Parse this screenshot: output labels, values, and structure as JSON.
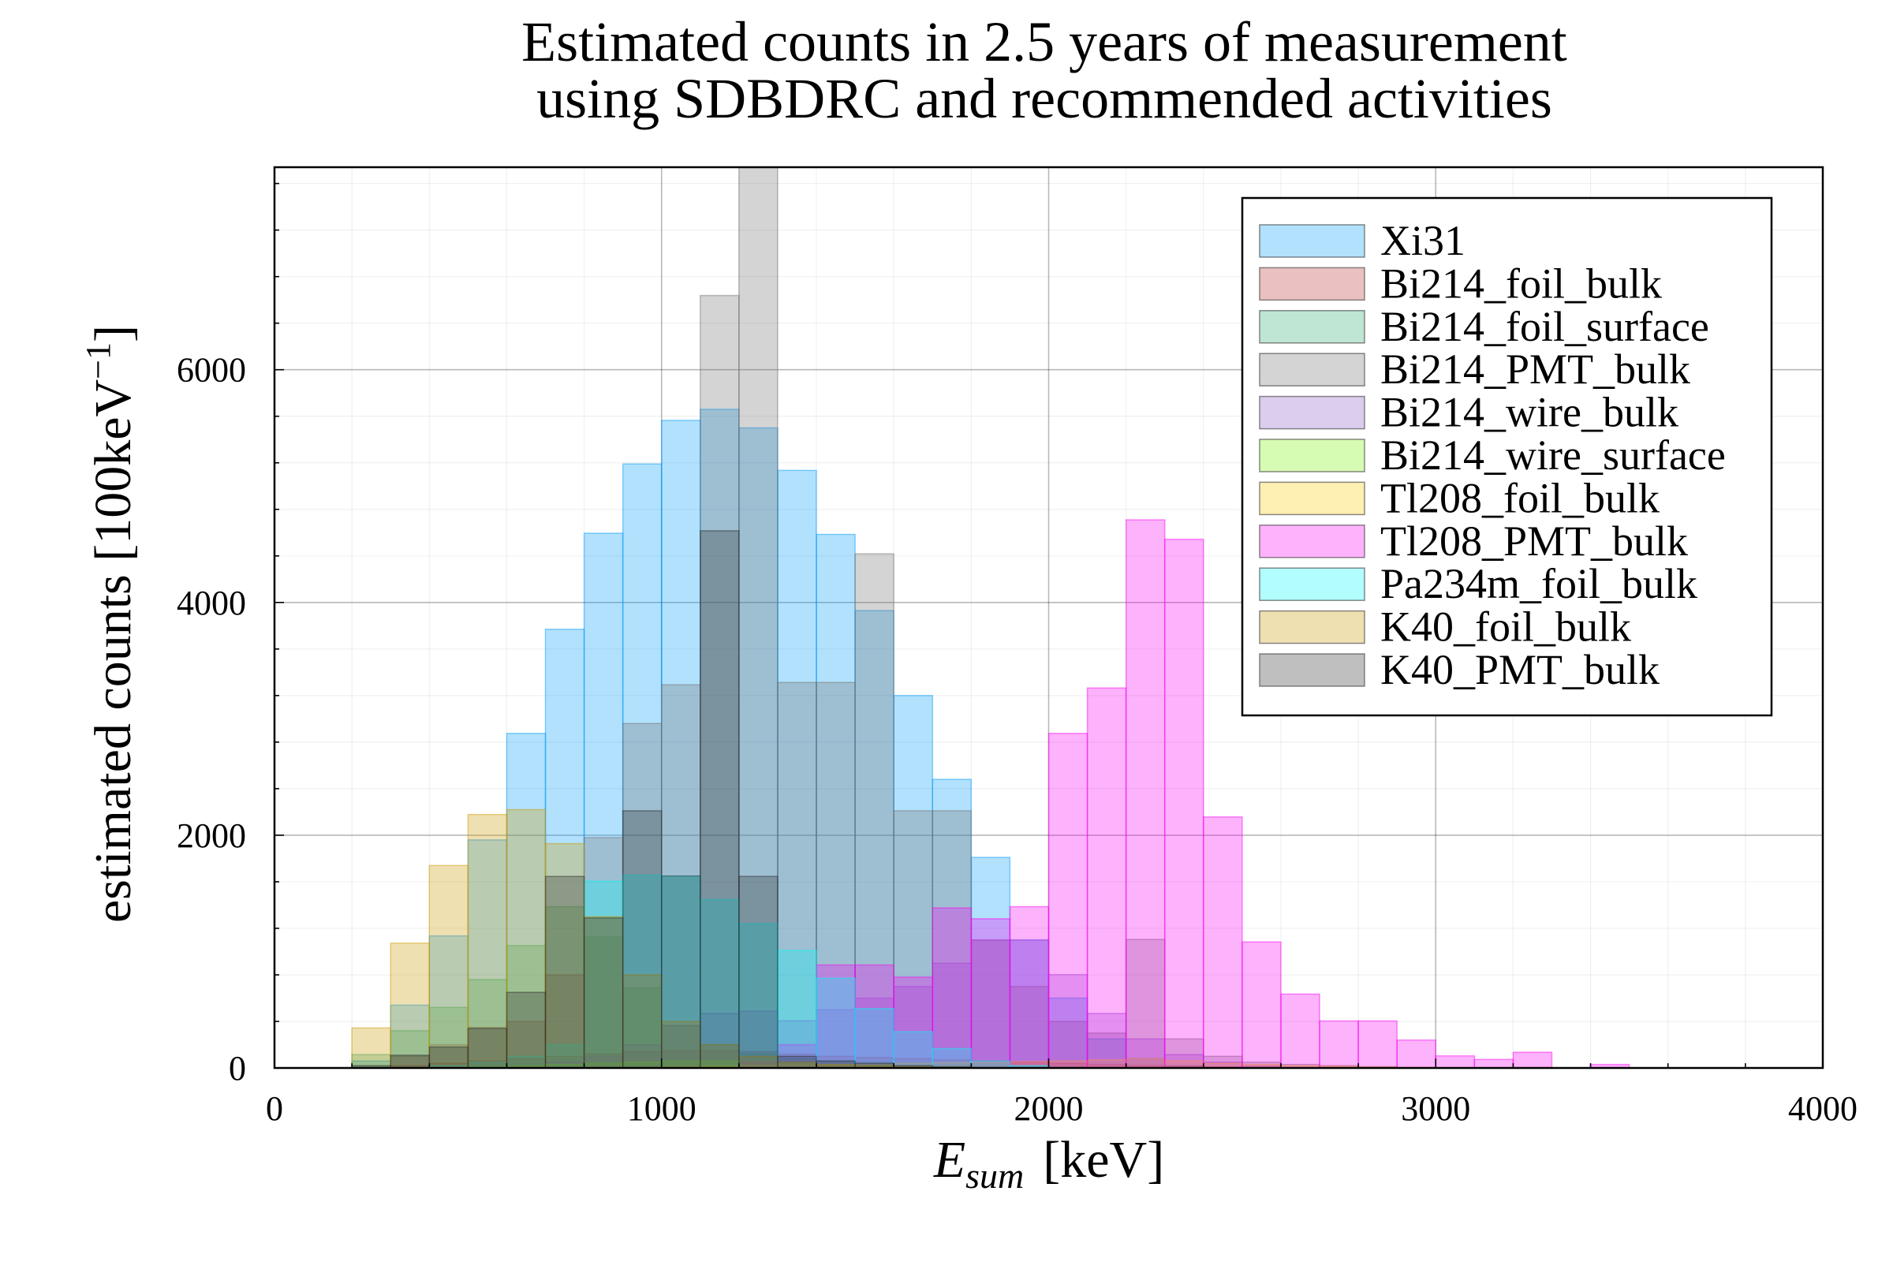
{
  "chart_data": {
    "type": "bar",
    "title": [
      "Estimated counts in 2.5 years of measurement",
      "using SDBDRC and recommended activities"
    ],
    "xlabel": {
      "symbol": "E",
      "subscript": "sum",
      "unit": "[keV]"
    },
    "ylabel": {
      "text": "estimated counts [100keV",
      "exponent": "−1",
      "close": "]"
    },
    "xlim": [
      0,
      4000
    ],
    "ylim": [
      0,
      7740
    ],
    "x_ticks": [
      0,
      1000,
      2000,
      3000,
      4000
    ],
    "y_ticks": [
      0,
      2000,
      4000,
      6000
    ],
    "grid": true,
    "minor_grid": true,
    "legend": "top-right",
    "bin_width": 100,
    "x": [
      0,
      100,
      200,
      300,
      400,
      500,
      600,
      700,
      800,
      900,
      1000,
      1100,
      1200,
      1300,
      1400,
      1500,
      1600,
      1700,
      1800,
      1900,
      2000,
      2100,
      2200,
      2300,
      2400,
      2500,
      2600,
      2700,
      2800,
      2900,
      3000,
      3100,
      3200,
      3300,
      3400,
      3500,
      3600,
      3700,
      3800,
      3900
    ],
    "series": [
      {
        "name": "Xi31",
        "color": "#009afa",
        "values": [
          0,
          0,
          60,
          540,
          1135,
          1960,
          2875,
          3770,
          4595,
          5190,
          5565,
          5660,
          5500,
          5135,
          4585,
          3930,
          3200,
          2480,
          1810,
          1100,
          600,
          250,
          80,
          20,
          0,
          0,
          0,
          0,
          0,
          0,
          0,
          0,
          0,
          0,
          0,
          0,
          0,
          0,
          0,
          0
        ]
      },
      {
        "name": "Bi214_foil_bulk",
        "color": "#bc2d30",
        "values": [
          0,
          0,
          0,
          20,
          40,
          60,
          80,
          100,
          120,
          140,
          150,
          150,
          140,
          120,
          100,
          90,
          80,
          70,
          60,
          50,
          40,
          30,
          20,
          15,
          10,
          5,
          0,
          0,
          0,
          0,
          0,
          0,
          0,
          0,
          0,
          0,
          0,
          0,
          0,
          0
        ]
      },
      {
        "name": "Bi214_foil_surface",
        "color": "#2aac70",
        "values": [
          0,
          0,
          115,
          320,
          520,
          760,
          1052,
          1386,
          1125,
          688,
          365,
          200,
          120,
          80,
          60,
          50,
          40,
          30,
          20,
          15,
          10,
          5,
          0,
          0,
          0,
          0,
          0,
          0,
          0,
          0,
          0,
          0,
          0,
          0,
          0,
          0,
          0,
          0,
          0,
          0
        ]
      },
      {
        "name": "Bi214_PMT_bulk",
        "color": "#707070",
        "values": [
          0,
          0,
          0,
          100,
          200,
          350,
          400,
          800,
          1980,
          2960,
          3293,
          6638,
          8200,
          3313,
          3313,
          4418,
          2210,
          2210,
          1100,
          700,
          400,
          300,
          1105,
          250,
          100,
          50,
          30,
          20,
          10,
          0,
          0,
          0,
          0,
          0,
          0,
          0,
          0,
          0,
          0,
          0
        ]
      },
      {
        "name": "Bi214_wire_bulk",
        "color": "#8a58ca",
        "values": [
          0,
          0,
          0,
          0,
          0,
          0,
          20,
          50,
          100,
          200,
          365,
          469,
          490,
          406,
          500,
          600,
          700,
          900,
          1100,
          1100,
          802,
          469,
          250,
          115,
          50,
          20,
          0,
          0,
          0,
          0,
          0,
          0,
          0,
          0,
          0,
          0,
          0,
          0,
          0,
          0
        ]
      },
      {
        "name": "Bi214_wire_surface",
        "color": "#76f200",
        "values": [
          0,
          0,
          0,
          0,
          0,
          10,
          20,
          30,
          40,
          50,
          60,
          60,
          50,
          40,
          30,
          20,
          15,
          10,
          5,
          0,
          0,
          0,
          0,
          0,
          0,
          0,
          0,
          0,
          0,
          0,
          0,
          0,
          0,
          0,
          0,
          0,
          0,
          0,
          0,
          0
        ]
      },
      {
        "name": "Tl208_foil_bulk",
        "color": "#fccd00",
        "values": [
          0,
          0,
          0,
          0,
          0,
          0,
          0,
          0,
          0,
          0,
          10,
          15,
          20,
          25,
          30,
          35,
          40,
          45,
          50,
          55,
          60,
          70,
          80,
          60,
          40,
          30,
          20,
          15,
          10,
          5,
          0,
          0,
          0,
          0,
          0,
          0,
          0,
          0,
          0,
          0
        ]
      },
      {
        "name": "Tl208_PMT_bulk",
        "color": "#f800f5",
        "values": [
          0,
          0,
          0,
          0,
          0,
          0,
          0,
          0,
          0,
          0,
          0,
          0,
          50,
          200,
          885,
          885,
          781,
          1375,
          1282,
          1386,
          2875,
          3265,
          4710,
          4543,
          2157,
          1083,
          635,
          404,
          404,
          240,
          104,
          73,
          135,
          0,
          30,
          0,
          0,
          0,
          0,
          0
        ]
      },
      {
        "name": "Pa234m_foil_bulk",
        "color": "#00fafa",
        "values": [
          0,
          0,
          0,
          0,
          20,
          50,
          100,
          200,
          1605,
          1657,
          1646,
          1448,
          1240,
          1010,
          771,
          510,
          312,
          167,
          60,
          20,
          0,
          0,
          0,
          0,
          0,
          0,
          0,
          0,
          0,
          0,
          0,
          0,
          0,
          0,
          0,
          0,
          0,
          0,
          0,
          0
        ]
      },
      {
        "name": "K40_foil_bulk",
        "color": "#ca9800",
        "values": [
          0,
          0,
          344,
          1073,
          1740,
          2178,
          2220,
          1928,
          1300,
          800,
          400,
          200,
          100,
          50,
          30,
          20,
          10,
          0,
          0,
          0,
          0,
          0,
          0,
          0,
          0,
          0,
          0,
          0,
          0,
          0,
          0,
          0,
          0,
          0,
          0,
          0,
          0,
          0,
          0,
          0
        ]
      },
      {
        "name": "K40_PMT_bulk",
        "color": "#2a2a2a",
        "values": [
          0,
          0,
          20,
          110,
          180,
          340,
          650,
          1646,
          1290,
          2210,
          1650,
          4616,
          1646,
          100,
          60,
          40,
          20,
          10,
          0,
          0,
          0,
          0,
          0,
          0,
          0,
          0,
          0,
          0,
          0,
          0,
          0,
          0,
          0,
          0,
          0,
          0,
          0,
          0,
          0,
          0
        ]
      }
    ]
  }
}
